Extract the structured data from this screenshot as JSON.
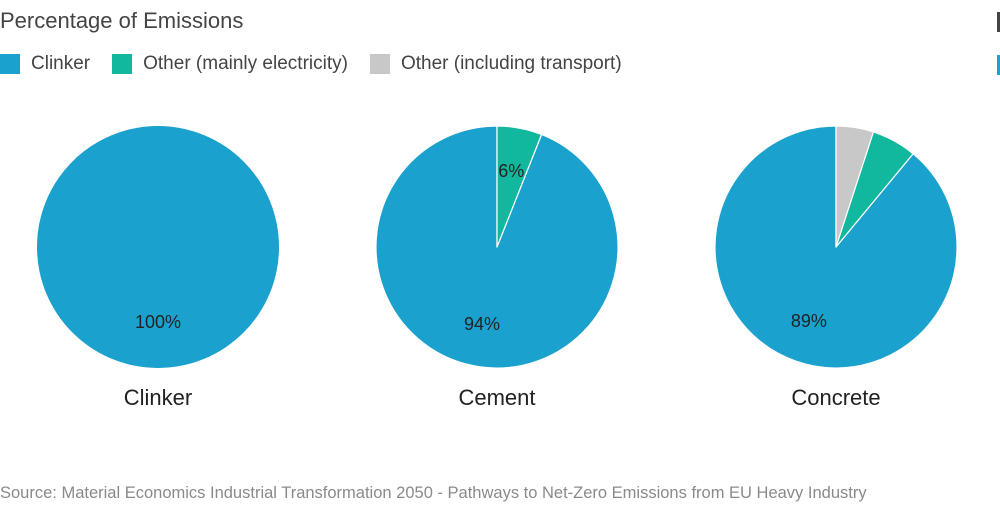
{
  "title": "Percentage of Emissions",
  "source": "Source: Material Economics Industrial Transformation 2050 - Pathways to Net-Zero Emissions from EU Heavy Industry",
  "colors": {
    "clinker": "#1ba1ce",
    "electricity": "#12b89e",
    "transport": "#c8c8c8"
  },
  "chart_data": {
    "type": "pie",
    "title": "Percentage of Emissions",
    "legend": [
      {
        "name": "Clinker",
        "color": "#1ba1ce"
      },
      {
        "name": "Other (mainly electricity)",
        "color": "#12b89e"
      },
      {
        "name": "Other (including transport)",
        "color": "#c8c8c8"
      }
    ],
    "legend_placement": "top-left",
    "pies": [
      {
        "name": "Clinker",
        "slices": [
          {
            "series": "Clinker",
            "value": 100,
            "label": "100%"
          }
        ]
      },
      {
        "name": "Cement",
        "slices": [
          {
            "series": "Clinker",
            "value": 94,
            "label": "94%"
          },
          {
            "series": "Other (mainly electricity)",
            "value": 6,
            "label": "6%"
          }
        ]
      },
      {
        "name": "Concrete",
        "slices": [
          {
            "series": "Clinker",
            "value": 89,
            "label": "89%"
          },
          {
            "series": "Other (mainly electricity)",
            "value": 6,
            "label": ""
          },
          {
            "series": "Other (including transport)",
            "value": 5,
            "label": ""
          }
        ]
      }
    ]
  }
}
